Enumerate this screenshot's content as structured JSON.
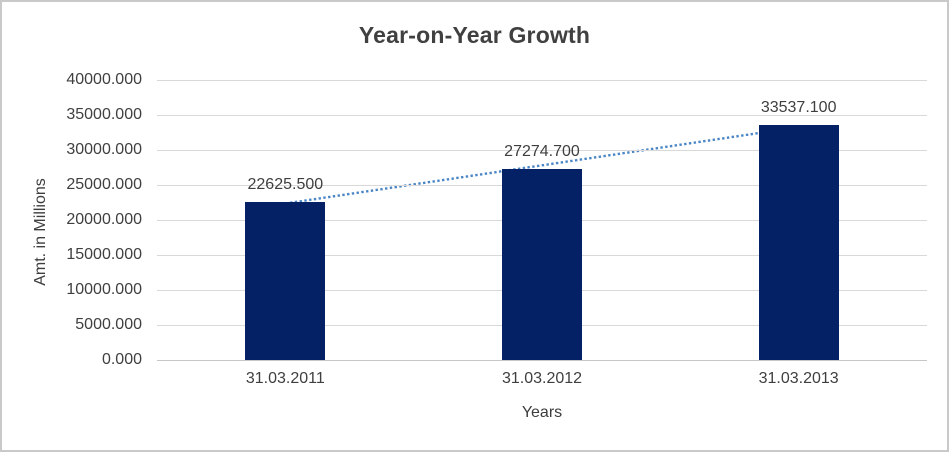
{
  "frame": {
    "background": "#ffffff",
    "border_color": "#c9c9c9"
  },
  "chart_data": {
    "type": "bar",
    "title": "Year-on-Year Growth",
    "xlabel": "Years",
    "ylabel": "Amt. in Millions",
    "categories": [
      "31.03.2011",
      "31.03.2012",
      "31.03.2013"
    ],
    "values": [
      22625.5,
      27274.7,
      33537.1
    ],
    "data_labels": [
      "22625.500",
      "27274.700",
      "33537.100"
    ],
    "ylim": [
      0,
      40000
    ],
    "ytick_step": 5000,
    "ytick_labels": [
      "0.000",
      "5000.000",
      "10000.000",
      "15000.000",
      "20000.000",
      "25000.000",
      "30000.000",
      "35000.000",
      "40000.000"
    ],
    "grid": true,
    "legend": "none",
    "bar_color": "#052165",
    "gridline_color": "#d9d9d9",
    "text_color": "#3f3f3f",
    "title_color": "#404040",
    "trendline": {
      "type": "linear",
      "style": "dotted",
      "color": "#4a86c6"
    }
  }
}
